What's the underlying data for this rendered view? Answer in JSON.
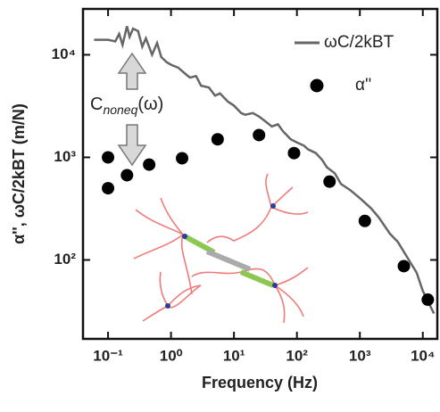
{
  "chart_data": {
    "type": "line",
    "xlabel": "Frequency (Hz)",
    "ylabel": "α'', ωC/2kBT (m/N)",
    "xscale": "log",
    "yscale": "log",
    "xlim": [
      0.04,
      17000
    ],
    "ylim": [
      17,
      28000
    ],
    "xticks": [
      {
        "value": 0.1,
        "label": "10⁻¹"
      },
      {
        "value": 1,
        "label": "10⁰"
      },
      {
        "value": 10,
        "label": "10¹"
      },
      {
        "value": 100,
        "label": "10²"
      },
      {
        "value": 1000,
        "label": "10³"
      },
      {
        "value": 10000,
        "label": "10⁴"
      }
    ],
    "yticks": [
      {
        "value": 100,
        "label": "10²"
      },
      {
        "value": 1000,
        "label": "10³"
      },
      {
        "value": 10000,
        "label": "10⁴"
      }
    ],
    "annotation": {
      "text": "C",
      "subscript": "noneq",
      "suffix": "(ω)"
    },
    "series": [
      {
        "name": "ωC/2kBT",
        "color": "#666666",
        "type": "line",
        "x": [
          0.06,
          0.1,
          0.13,
          0.15,
          0.17,
          0.2,
          0.22,
          0.25,
          0.3,
          0.35,
          0.4,
          0.5,
          0.6,
          0.7,
          0.85,
          1,
          1.3,
          1.7,
          2,
          2.5,
          3,
          4,
          5,
          6,
          8,
          10,
          13,
          15,
          20,
          25,
          30,
          40,
          50,
          60,
          80,
          100,
          130,
          150,
          200,
          250,
          300,
          400,
          500,
          700,
          1000,
          1500,
          2000,
          3000,
          4000,
          6000,
          8000,
          10000,
          12000,
          15000
        ],
        "values": [
          14000,
          14000,
          13500,
          16000,
          12500,
          19000,
          15000,
          18000,
          17000,
          12000,
          14500,
          10000,
          13000,
          9500,
          8500,
          8000,
          7500,
          6500,
          6000,
          6200,
          5000,
          4800,
          4000,
          4200,
          3500,
          3200,
          2700,
          2600,
          2700,
          2500,
          2300,
          2000,
          2100,
          1800,
          1500,
          1400,
          1300,
          1200,
          1100,
          950,
          800,
          700,
          550,
          480,
          400,
          320,
          260,
          180,
          150,
          100,
          75,
          50,
          40,
          30
        ]
      },
      {
        "name": "α''",
        "color": "#000000",
        "type": "scatter",
        "x": [
          0.1,
          0.1,
          0.2,
          0.45,
          1.5,
          5.5,
          25,
          90,
          330,
          1200,
          5000,
          12000
        ],
        "values": [
          1000,
          500,
          670,
          850,
          980,
          1500,
          1650,
          1100,
          580,
          240,
          87,
          41
        ]
      }
    ]
  }
}
